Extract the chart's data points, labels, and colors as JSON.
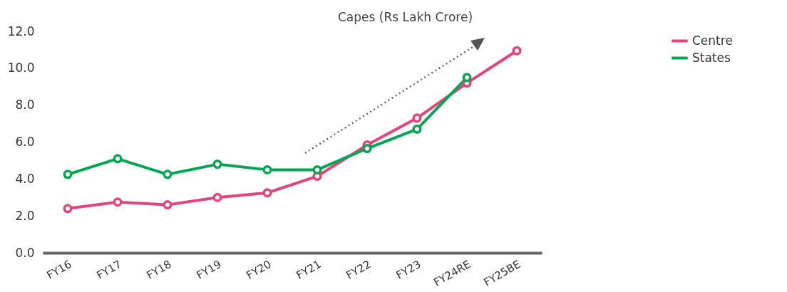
{
  "chart_data": {
    "type": "line",
    "categories": [
      "FY16",
      "FY17",
      "FY18",
      "FY19",
      "FY20",
      "FY21",
      "FY22",
      "FY23",
      "FY24RE",
      "FY25BE"
    ],
    "series": [
      {
        "name": "Centre",
        "color": "#e0457b",
        "values": [
          2.4,
          2.75,
          2.6,
          3.0,
          3.25,
          4.15,
          5.85,
          7.3,
          9.2,
          10.95
        ]
      },
      {
        "name": "States",
        "color": "#00a651",
        "values": [
          4.25,
          5.1,
          4.25,
          4.8,
          4.5,
          4.5,
          5.65,
          6.7,
          9.5,
          null
        ]
      }
    ],
    "ylim": [
      0,
      12
    ],
    "yticks": [
      {
        "value": 0,
        "label": "0.0"
      },
      {
        "value": 2,
        "label": "2.0"
      },
      {
        "value": 4,
        "label": "4.0"
      },
      {
        "value": 6,
        "label": "6.0"
      },
      {
        "value": 8,
        "label": "8.0"
      },
      {
        "value": 10,
        "label": "10.0"
      },
      {
        "value": 12,
        "label": "12.0"
      }
    ],
    "grid": false,
    "legend": "right",
    "marker": "circle",
    "line_style": "solid",
    "annotations": [
      "Capes (Rs Lakh Crore)"
    ]
  }
}
